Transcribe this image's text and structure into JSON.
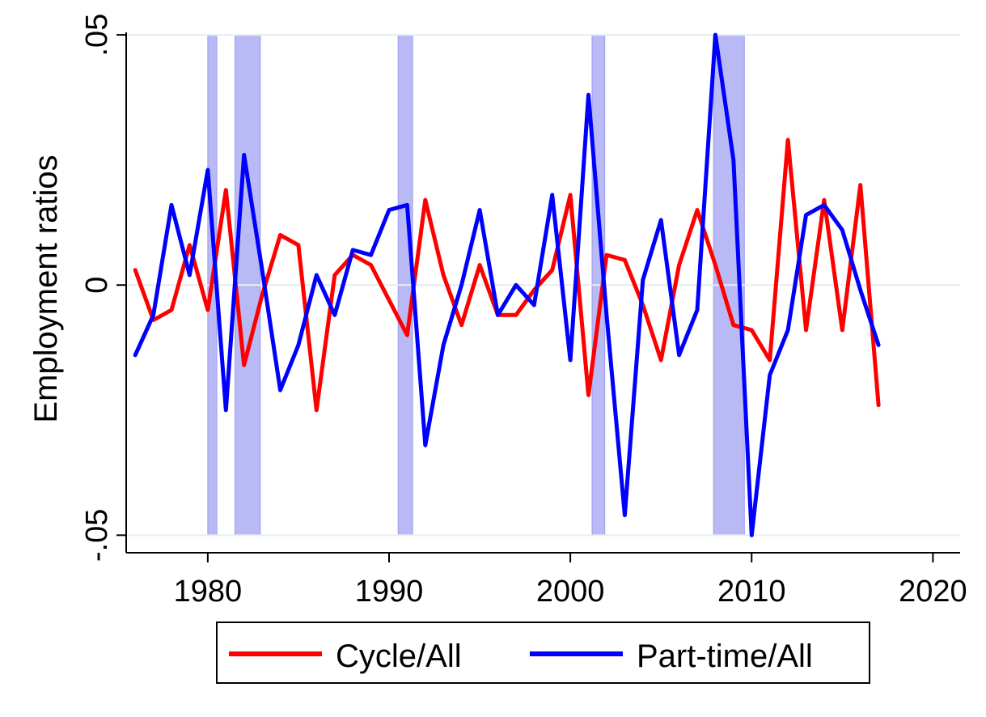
{
  "chart_data": {
    "type": "line",
    "title": "",
    "xlabel": "",
    "ylabel": "Employment ratios",
    "xlim": [
      1975.5,
      2021.5
    ],
    "ylim": [
      -0.0535,
      0.0505
    ],
    "x_ticks": [
      1980,
      1990,
      2000,
      2010,
      2020
    ],
    "x_tick_labels": [
      "1980",
      "1990",
      "2000",
      "2010",
      "2020"
    ],
    "y_ticks": [
      -0.05,
      0,
      0.05
    ],
    "y_tick_labels": [
      "-.05",
      "0",
      ".05"
    ],
    "grid": true,
    "legend_position": "bottom",
    "recession_color": "#b9b9f5",
    "recessions": [
      [
        1980.0,
        1980.5
      ],
      [
        1981.5,
        1982.9
      ],
      [
        1990.5,
        1991.3
      ],
      [
        2001.2,
        2001.9
      ],
      [
        2007.9,
        2009.6
      ]
    ],
    "x": [
      1976,
      1977,
      1978,
      1979,
      1980,
      1981,
      1982,
      1983,
      1984,
      1985,
      1986,
      1987,
      1988,
      1989,
      1990,
      1991,
      1992,
      1993,
      1994,
      1995,
      1996,
      1997,
      1998,
      1999,
      2000,
      2001,
      2002,
      2003,
      2004,
      2005,
      2006,
      2007,
      2008,
      2009,
      2010,
      2011,
      2012,
      2013,
      2014,
      2015,
      2016,
      2017
    ],
    "series": [
      {
        "name": "Cycle/All",
        "color": "#ff0000",
        "values": [
          0.003,
          -0.007,
          -0.005,
          0.008,
          -0.005,
          0.019,
          -0.016,
          -0.002,
          0.01,
          0.008,
          -0.025,
          0.002,
          0.006,
          0.004,
          -0.003,
          -0.01,
          0.017,
          0.002,
          -0.008,
          0.004,
          -0.006,
          -0.006,
          -0.001,
          0.003,
          0.018,
          -0.022,
          0.006,
          0.005,
          -0.004,
          -0.015,
          0.004,
          0.015,
          0.004,
          -0.008,
          -0.009,
          -0.015,
          0.029,
          -0.009,
          0.017,
          -0.009,
          0.02,
          -0.024
        ]
      },
      {
        "name": "Part-time/All",
        "color": "#0000ff",
        "values": [
          -0.014,
          -0.006,
          0.016,
          0.002,
          0.023,
          -0.025,
          0.026,
          0.003,
          -0.021,
          -0.012,
          0.002,
          -0.006,
          0.007,
          0.006,
          0.015,
          0.016,
          -0.032,
          -0.012,
          0.0,
          0.015,
          -0.006,
          0.0,
          -0.004,
          0.018,
          -0.015,
          0.038,
          -0.006,
          -0.046,
          0.001,
          0.013,
          -0.014,
          -0.005,
          0.05,
          0.025,
          -0.05,
          -0.018,
          -0.009,
          0.014,
          0.016,
          0.011,
          -0.001,
          -0.012
        ]
      }
    ]
  }
}
